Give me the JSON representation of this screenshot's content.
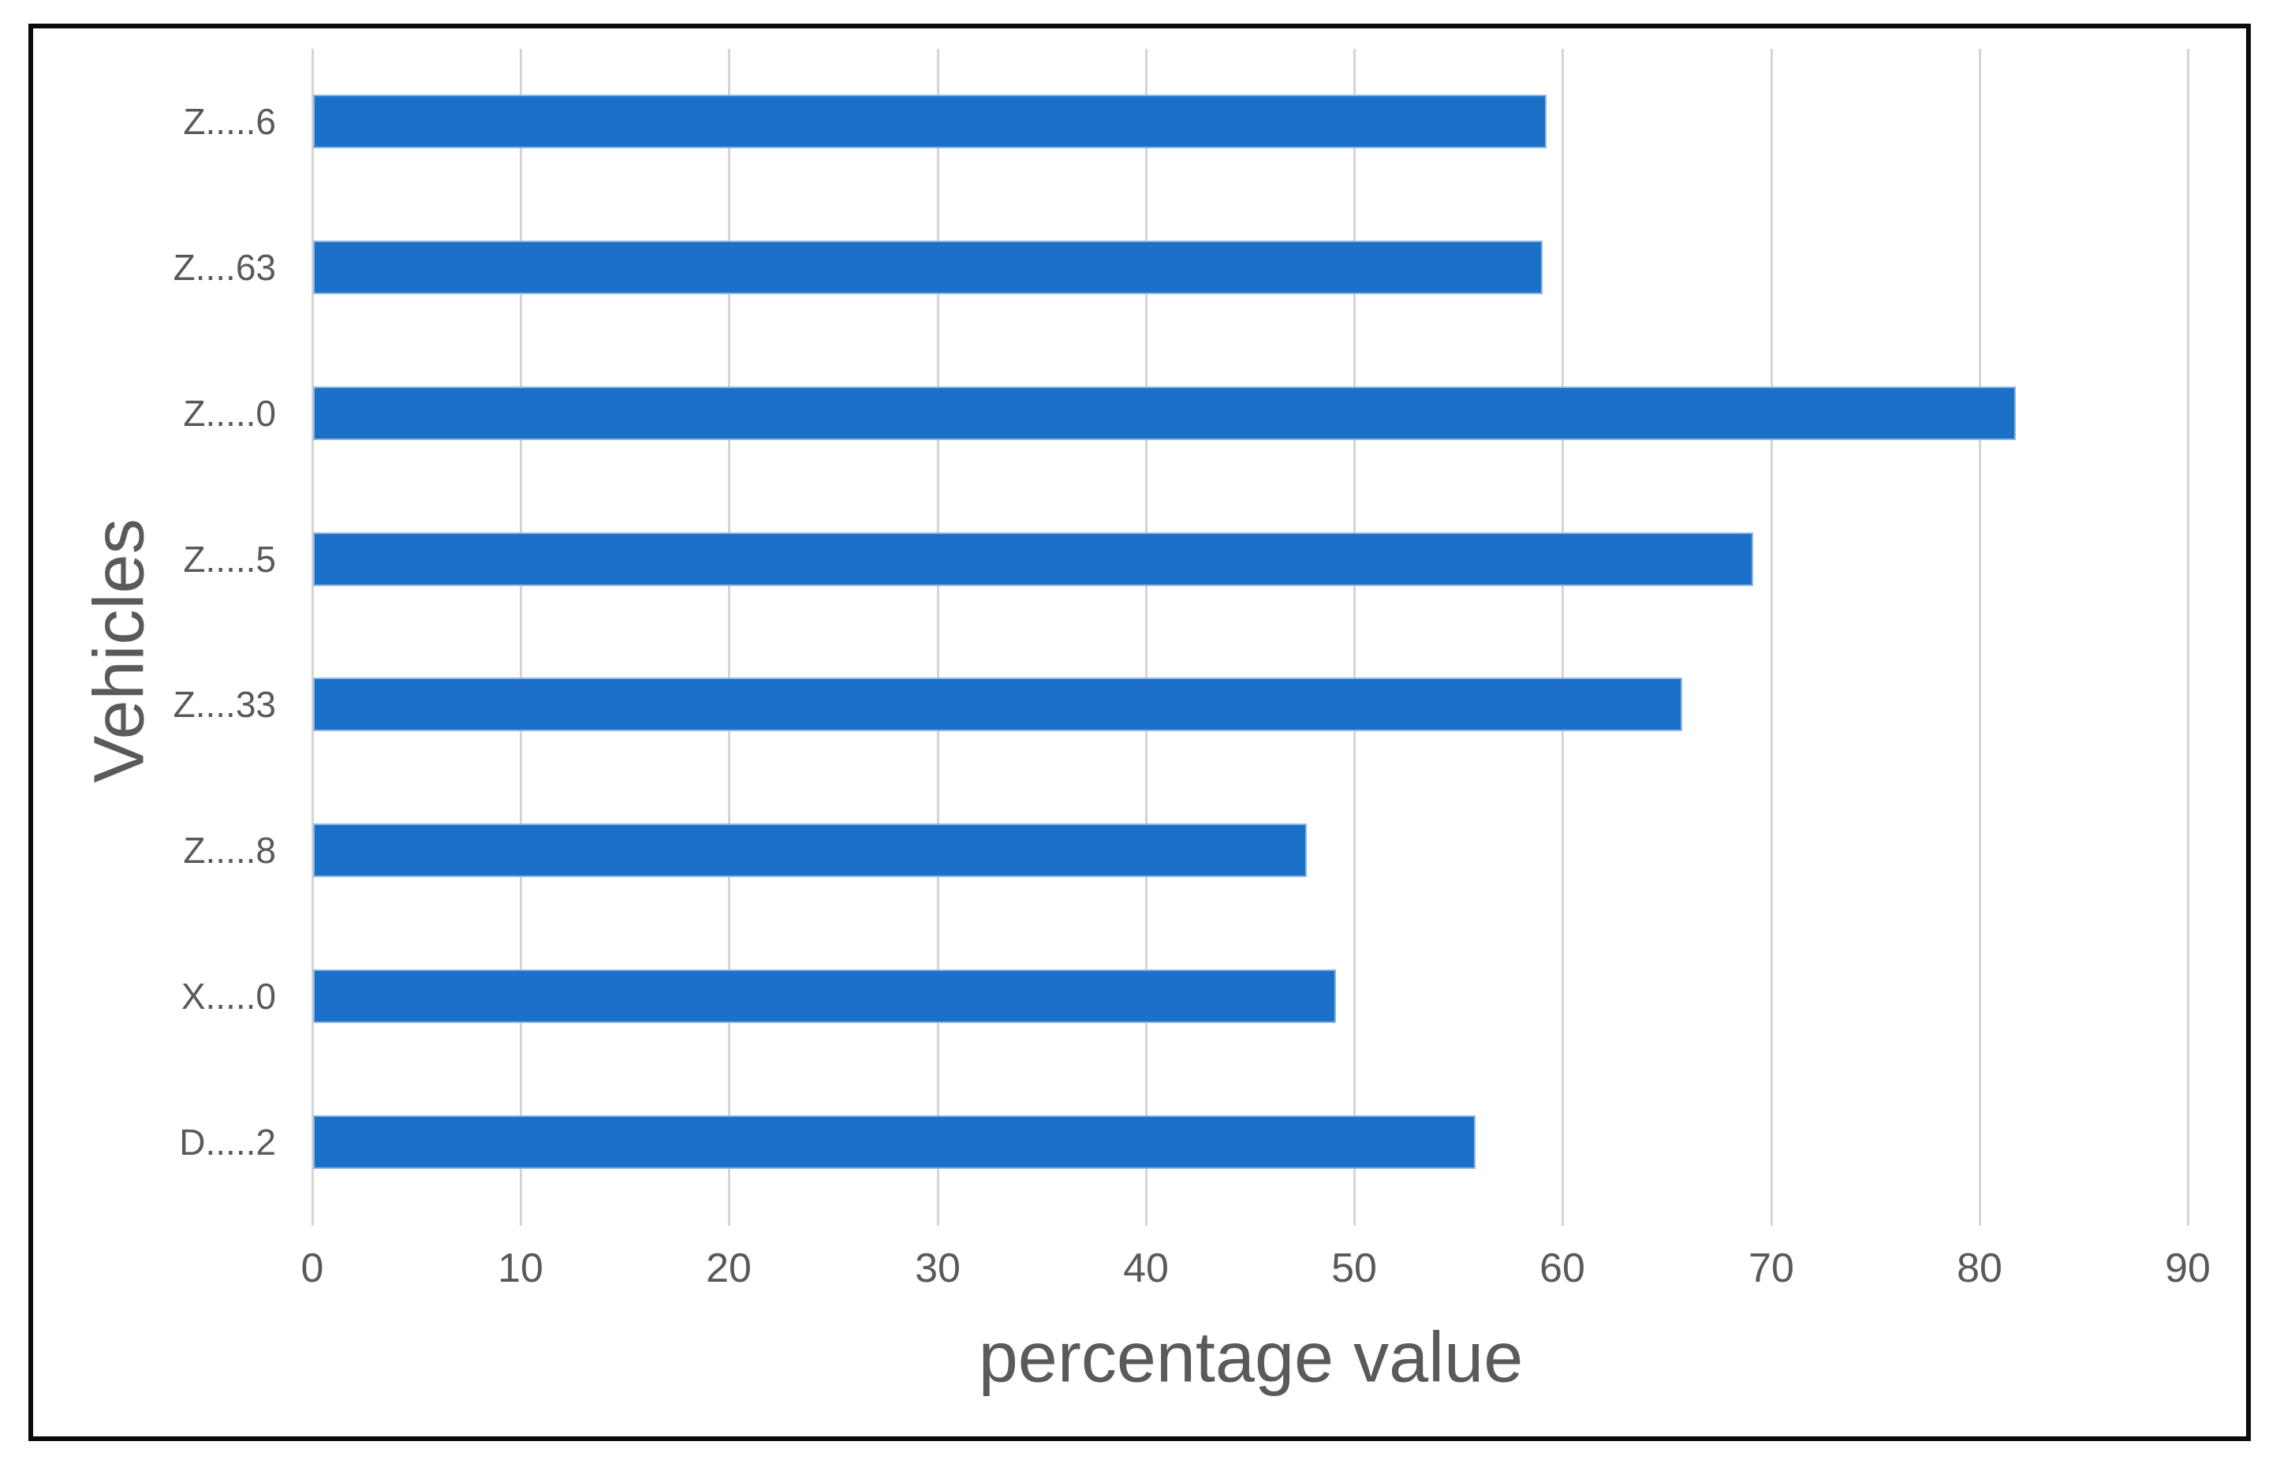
{
  "chart_data": {
    "type": "bar",
    "orientation": "horizontal",
    "title": "",
    "xlabel": "percentage value",
    "ylabel": "Vehicles",
    "categories": [
      "Z.....6",
      "Z....63",
      "Z.....0",
      "Z.....5",
      "Z....33",
      "Z.....8",
      "X.....0",
      "D.....2"
    ],
    "values": [
      59.2,
      59.0,
      81.7,
      69.1,
      65.7,
      47.7,
      49.1,
      55.8
    ],
    "xlim": [
      0,
      90
    ],
    "xticks": [
      0,
      10,
      20,
      30,
      40,
      50,
      60,
      70,
      80,
      90
    ],
    "grid": "vertical-only",
    "legend": "none",
    "colors": {
      "bar": "#1B70C8",
      "bar_edge": "#8FB5E3",
      "gridline": "#D4D4D4",
      "axis_text": "#595959",
      "frame_border": "#0A0A0A",
      "background": "#FFFFFF"
    }
  }
}
